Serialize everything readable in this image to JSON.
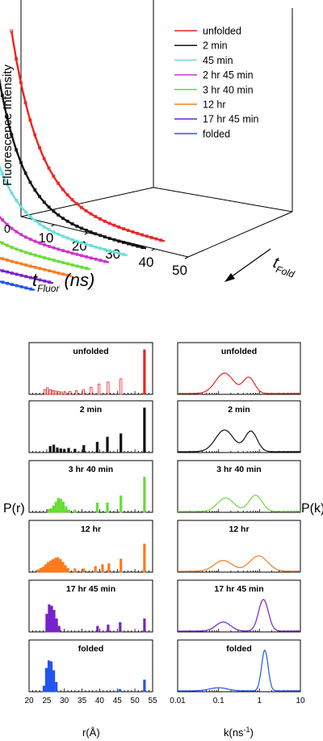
{
  "top_chart": {
    "z_axis_label": "Fluorescence Intensity",
    "x_axis_label_main": "t",
    "x_axis_label_sub": "Fluor",
    "x_axis_label_unit": "(ns)",
    "depth_axis_label_main": "t",
    "depth_axis_label_sub": "Fold",
    "z_zero_label": "0",
    "x_tick_labels": [
      "10",
      "20",
      "30",
      "40",
      "50"
    ]
  },
  "bottom_left": {
    "ylabel": "P(r)",
    "xlabel": "r(Å)",
    "tick_labels": [
      "20",
      "25",
      "30",
      "35",
      "40",
      "45",
      "50",
      "55"
    ]
  },
  "bottom_right": {
    "ylabel": "P(k)",
    "xlabel_main": "k(ns",
    "xlabel_exp": "-1",
    "xlabel_close": ")",
    "tick_labels": [
      "0.01",
      "0.1",
      "1",
      "10"
    ]
  },
  "chart_data": [
    {
      "type": "line",
      "title": "",
      "xlabel": "t Fluor (ns)",
      "ylabel": "Fluorescence Intensity",
      "zlabel": "t Fold",
      "xlim": [
        0,
        50
      ],
      "legend_position": "top-right",
      "series": [
        {
          "name": "unfolded",
          "color": "#ee2222",
          "decay_ns": 9.0
        },
        {
          "name": "2 min",
          "color": "#111111",
          "decay_ns": 8.0
        },
        {
          "name": "45 min",
          "color": "#66e0d8",
          "decay_ns": 7.5
        },
        {
          "name": "2 hr 45 min",
          "color": "#cc33cc",
          "decay_ns": 6.5
        },
        {
          "name": "3 hr 40 min",
          "color": "#66dd33",
          "decay_ns": 6.0
        },
        {
          "name": "12 hr",
          "color": "#ff7a1a",
          "decay_ns": 5.0
        },
        {
          "name": "17 hr 45 min",
          "color": "#7722cc",
          "decay_ns": 4.0
        },
        {
          "name": "folded",
          "color": "#2255ee",
          "decay_ns": 3.0
        }
      ]
    },
    {
      "type": "bar",
      "xlabel": "r(Å)",
      "ylabel": "P(r)",
      "xlim": [
        20,
        55
      ],
      "panels": [
        {
          "label": "unfolded",
          "color": "#ee2222",
          "bars": [
            [
              24.5,
              0.1
            ],
            [
              25.2,
              0.14
            ],
            [
              26,
              0.1
            ],
            [
              26.8,
              0.08
            ],
            [
              27.6,
              0.07
            ],
            [
              28.4,
              0.06
            ],
            [
              29.2,
              0.05
            ],
            [
              30.2,
              0.05
            ],
            [
              31.6,
              0.06
            ],
            [
              33.4,
              0.08
            ],
            [
              35.4,
              0.1
            ],
            [
              37.6,
              0.15
            ],
            [
              39.8,
              0.22
            ],
            [
              42.4,
              0.26
            ],
            [
              46,
              0.33
            ],
            [
              52.7,
              0.95
            ]
          ]
        },
        {
          "label": "2 min",
          "color": "#111111",
          "bars": [
            [
              26,
              0.13
            ],
            [
              27,
              0.16
            ],
            [
              28,
              0.1
            ],
            [
              29,
              0.08
            ],
            [
              30,
              0.07
            ],
            [
              31.2,
              0.09
            ],
            [
              33,
              0.07
            ],
            [
              35.5,
              0.15
            ],
            [
              39.3,
              0.22
            ],
            [
              42.2,
              0.33
            ],
            [
              46,
              0.4
            ],
            [
              52.7,
              0.95
            ]
          ]
        },
        {
          "label": "3 hr 40 min",
          "color": "#66dd33",
          "bars": [
            [
              25.5,
              0.06
            ],
            [
              26.2,
              0.08
            ],
            [
              26.9,
              0.14
            ],
            [
              27.6,
              0.22
            ],
            [
              28.3,
              0.3
            ],
            [
              29,
              0.28
            ],
            [
              29.7,
              0.22
            ],
            [
              30.5,
              0.12
            ],
            [
              31.3,
              0.05
            ],
            [
              33,
              0.05
            ],
            [
              39.3,
              0.2
            ],
            [
              42.2,
              0.2
            ],
            [
              46,
              0.35
            ],
            [
              52.7,
              0.75
            ]
          ]
        },
        {
          "label": "12 hr",
          "color": "#ff7a1a",
          "bars": [
            [
              22.5,
              0.05
            ],
            [
              23.3,
              0.08
            ],
            [
              24,
              0.11
            ],
            [
              24.7,
              0.16
            ],
            [
              25.4,
              0.21
            ],
            [
              26.1,
              0.24
            ],
            [
              26.8,
              0.27
            ],
            [
              27.5,
              0.3
            ],
            [
              28.2,
              0.31
            ],
            [
              28.9,
              0.27
            ],
            [
              29.6,
              0.21
            ],
            [
              30.3,
              0.14
            ],
            [
              31,
              0.08
            ],
            [
              33,
              0.07
            ],
            [
              35.4,
              0.07
            ],
            [
              38.8,
              0.12
            ],
            [
              40.8,
              0.16
            ],
            [
              42.6,
              0.18
            ],
            [
              46,
              0.28
            ],
            [
              52.7,
              0.6
            ]
          ]
        },
        {
          "label": "17 hr 45 min",
          "color": "#7722cc",
          "bars": [
            [
              25,
              0.38
            ],
            [
              25.7,
              0.58
            ],
            [
              26.4,
              0.55
            ],
            [
              27.1,
              0.46
            ],
            [
              27.8,
              0.28
            ],
            [
              28.5,
              0.12
            ],
            [
              39.4,
              0.12
            ],
            [
              42.4,
              0.15
            ],
            [
              45.8,
              0.2
            ],
            [
              52.7,
              0.28
            ]
          ]
        },
        {
          "label": "folded",
          "color": "#2255ee",
          "bars": [
            [
              24.2,
              0.12
            ],
            [
              24.9,
              0.5
            ],
            [
              25.6,
              0.66
            ],
            [
              26.3,
              0.64
            ],
            [
              27,
              0.45
            ],
            [
              27.7,
              0.2
            ],
            [
              45.7,
              0.05
            ],
            [
              52.7,
              0.25
            ]
          ]
        }
      ]
    },
    {
      "type": "line",
      "xlabel": "k(ns-1)",
      "ylabel": "P(k)",
      "xscale": "log",
      "xlim": [
        0.01,
        10
      ],
      "panels": [
        {
          "label": "unfolded",
          "color": "#ee2222",
          "peaks": [
            [
              0.14,
              0.45,
              0.22
            ],
            [
              0.55,
              0.35,
              0.14
            ]
          ]
        },
        {
          "label": "2 min",
          "color": "#111111",
          "peaks": [
            [
              0.14,
              0.48,
              0.22
            ],
            [
              0.62,
              0.45,
              0.15
            ]
          ]
        },
        {
          "label": "3 hr 40 min",
          "color": "#66dd33",
          "peaks": [
            [
              0.15,
              0.3,
              0.2
            ],
            [
              0.8,
              0.36,
              0.16
            ]
          ]
        },
        {
          "label": "12 hr",
          "color": "#ff7a1a",
          "peaks": [
            [
              0.13,
              0.24,
              0.22
            ],
            [
              0.95,
              0.34,
              0.22
            ]
          ]
        },
        {
          "label": "17 hr 45 min",
          "color": "#7722cc",
          "peaks": [
            [
              0.13,
              0.2,
              0.18
            ],
            [
              1.25,
              0.7,
              0.12
            ]
          ]
        },
        {
          "label": "folded",
          "color": "#2255ee",
          "peaks": [
            [
              0.1,
              0.07,
              0.22
            ],
            [
              1.35,
              0.9,
              0.08
            ]
          ]
        }
      ]
    }
  ]
}
